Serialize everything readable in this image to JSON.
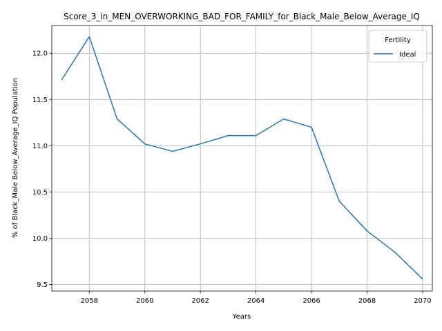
{
  "chart_data": {
    "type": "line",
    "title": "Score_3_in_MEN_OVERWORKING_BAD_FOR_FAMILY_for_Black_Male_Below_Average_IQ",
    "xlabel": "Years",
    "ylabel": "% of Black_Male Below_Average_IQ Population",
    "xlim": [
      2056.65,
      2070.35
    ],
    "ylim": [
      9.43,
      12.3
    ],
    "x_ticks": [
      2058,
      2060,
      2062,
      2064,
      2066,
      2068,
      2070
    ],
    "y_ticks": [
      9.5,
      10.0,
      10.5,
      11.0,
      11.5,
      12.0
    ],
    "x_tick_labels": [
      "2058",
      "2060",
      "2062",
      "2064",
      "2066",
      "2068",
      "2070"
    ],
    "y_tick_labels": [
      "9.5",
      "10.0",
      "10.5",
      "11.0",
      "11.5",
      "12.0"
    ],
    "grid": true,
    "legend": {
      "title": "Fertility",
      "placement": "top-right"
    },
    "series": [
      {
        "name": "Ideal",
        "color": "#1f77b4",
        "x": [
          2057,
          2058,
          2059,
          2060,
          2061,
          2062,
          2063,
          2064,
          2065,
          2066,
          2067,
          2068,
          2069,
          2070
        ],
        "y": [
          11.71,
          12.18,
          11.29,
          11.02,
          10.94,
          11.02,
          11.11,
          11.11,
          11.29,
          11.2,
          10.4,
          10.08,
          9.85,
          9.56
        ]
      }
    ]
  }
}
